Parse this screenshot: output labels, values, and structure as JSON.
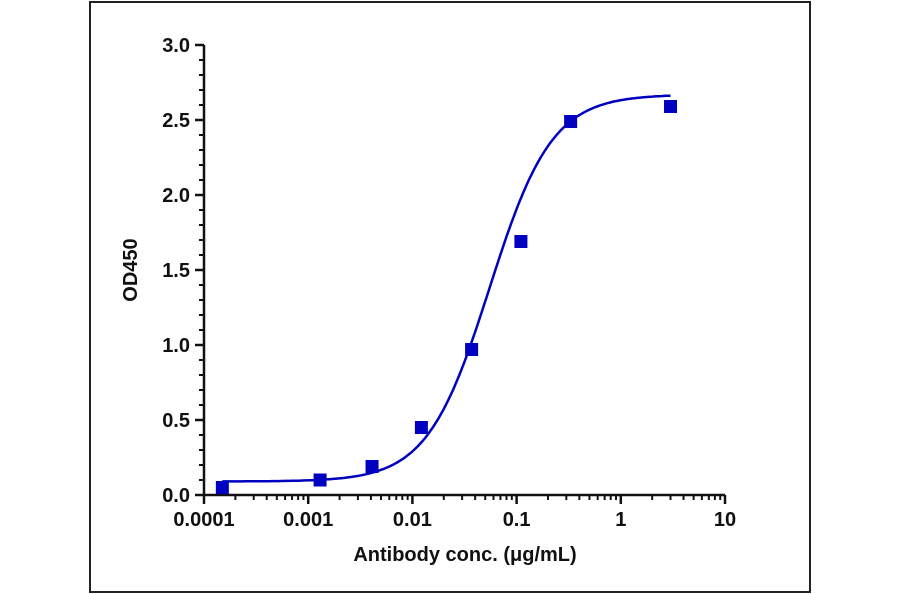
{
  "chart_data": {
    "type": "scatter",
    "title": "",
    "xlabel": "Antibody conc. (μg/mL)",
    "ylabel": "OD450",
    "xscale": "log",
    "xlim": [
      0.0001,
      10
    ],
    "ylim": [
      0,
      3.0
    ],
    "x_ticks": [
      "0.0001",
      "0.001",
      "0.01",
      "0.1",
      "1",
      "10"
    ],
    "y_ticks": [
      "0.0",
      "0.5",
      "1.0",
      "1.5",
      "2.0",
      "2.5",
      "3.0"
    ],
    "grid": false,
    "legend": null,
    "series": [
      {
        "name": "OD450",
        "marker": "square",
        "color": "#0000C0",
        "x": [
          0.00015,
          0.0013,
          0.0041,
          0.0122,
          0.037,
          0.11,
          0.33,
          3.0
        ],
        "y": [
          0.05,
          0.1,
          0.19,
          0.45,
          0.97,
          1.69,
          2.49,
          2.59
        ]
      }
    ],
    "fit": {
      "type": "4PL sigmoidal",
      "color": "#0000C0",
      "bottom": 0.09,
      "top": 2.67,
      "ec50": 0.055,
      "hill": 1.45,
      "x_range": [
        0.00015,
        3.0
      ]
    }
  }
}
